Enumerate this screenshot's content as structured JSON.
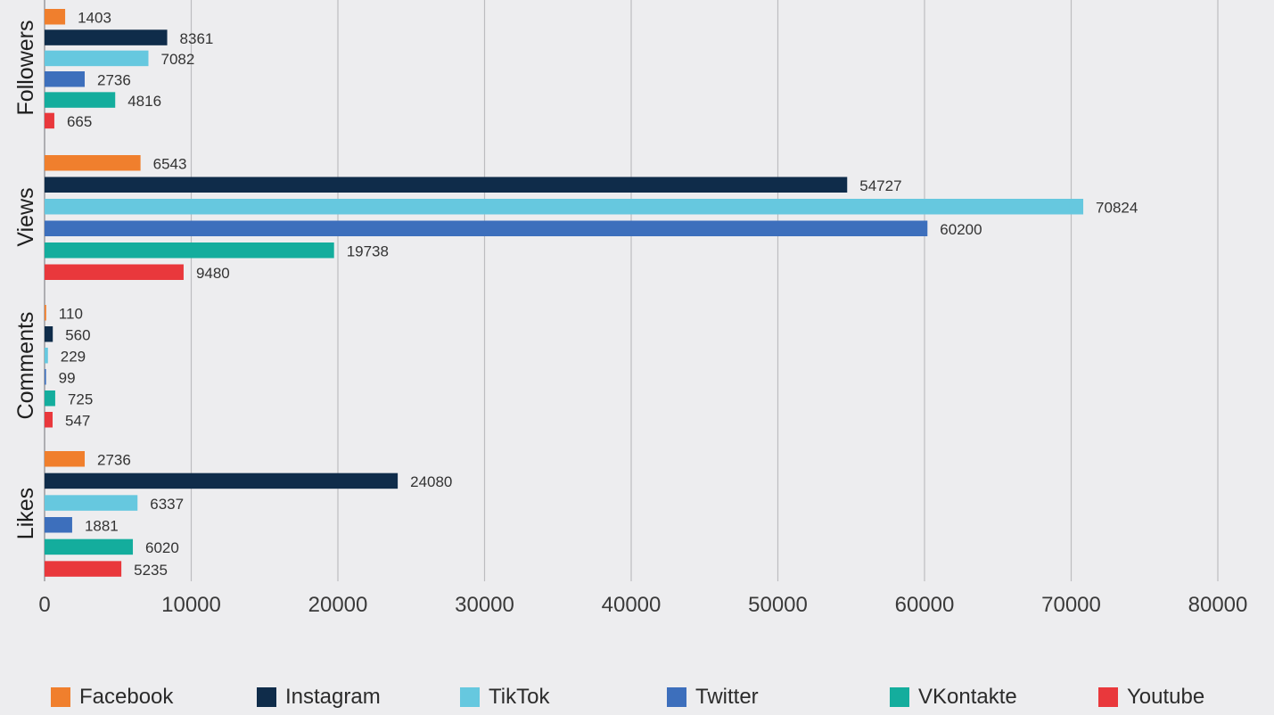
{
  "chart_data": {
    "type": "bar",
    "orientation": "horizontal",
    "categories": [
      "Followers",
      "Views",
      "Comments",
      "Likes"
    ],
    "series": [
      {
        "name": "Facebook",
        "color": "#f07f2d",
        "values": [
          1403,
          6543,
          110,
          2736
        ]
      },
      {
        "name": "Instagram",
        "color": "#0f2c4a",
        "values": [
          8361,
          54727,
          560,
          24080
        ]
      },
      {
        "name": "TikTok",
        "color": "#66c8df",
        "values": [
          7082,
          70824,
          229,
          6337
        ]
      },
      {
        "name": "Twitter",
        "color": "#3d6fbc",
        "values": [
          2736,
          60200,
          99,
          1881
        ]
      },
      {
        "name": "VKontakte",
        "color": "#14ad9d",
        "values": [
          4816,
          19738,
          725,
          6020
        ]
      },
      {
        "name": "Youtube",
        "color": "#e9383c",
        "values": [
          665,
          9480,
          547,
          5235
        ]
      }
    ],
    "xlim": [
      0,
      80000
    ],
    "xticks": [
      0,
      10000,
      20000,
      30000,
      40000,
      50000,
      60000,
      70000,
      80000
    ],
    "grid": "vertical",
    "legend_position": "bottom",
    "data_labels": true
  }
}
